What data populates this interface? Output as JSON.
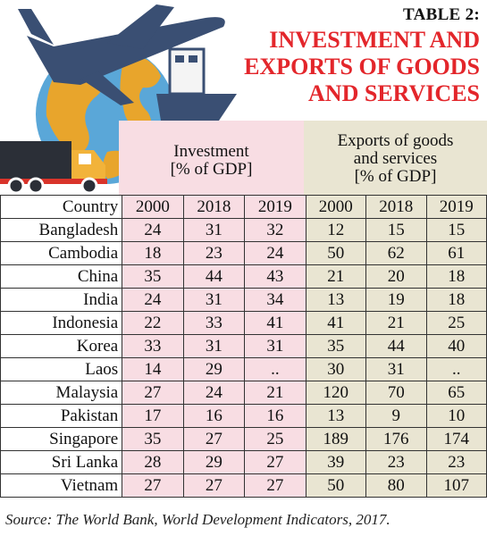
{
  "header": {
    "table_label": "TABLE 2:",
    "title_lines": [
      "INVESTMENT AND",
      "EXPORTS OF GOODS",
      "AND SERVICES"
    ]
  },
  "groups": {
    "investment": [
      "Investment",
      "[% of GDP]"
    ],
    "exports": [
      "Exports of goods",
      "and services",
      "[% of GDP]"
    ]
  },
  "columns": [
    "Country",
    "2000",
    "2018",
    "2019",
    "2000",
    "2018",
    "2019"
  ],
  "rows": [
    {
      "country": "Bangladesh",
      "investment": [
        "24",
        "31",
        "32"
      ],
      "exports": [
        "12",
        "15",
        "15"
      ]
    },
    {
      "country": "Cambodia",
      "investment": [
        "18",
        "23",
        "24"
      ],
      "exports": [
        "50",
        "62",
        "61"
      ]
    },
    {
      "country": "China",
      "investment": [
        "35",
        "44",
        "43"
      ],
      "exports": [
        "21",
        "20",
        "18"
      ]
    },
    {
      "country": "India",
      "investment": [
        "24",
        "31",
        "34"
      ],
      "exports": [
        "13",
        "19",
        "18"
      ]
    },
    {
      "country": "Indonesia",
      "investment": [
        "22",
        "33",
        "41"
      ],
      "exports": [
        "41",
        "21",
        "25"
      ]
    },
    {
      "country": "Korea",
      "investment": [
        "33",
        "31",
        "31"
      ],
      "exports": [
        "35",
        "44",
        "40"
      ]
    },
    {
      "country": "Laos",
      "investment": [
        "14",
        "29",
        ".."
      ],
      "exports": [
        "30",
        "31",
        ".."
      ]
    },
    {
      "country": "Malaysia",
      "investment": [
        "27",
        "24",
        "21"
      ],
      "exports": [
        "120",
        "70",
        "65"
      ]
    },
    {
      "country": "Pakistan",
      "investment": [
        "17",
        "16",
        "16"
      ],
      "exports": [
        "13",
        "9",
        "10"
      ]
    },
    {
      "country": "Singapore",
      "investment": [
        "35",
        "27",
        "25"
      ],
      "exports": [
        "189",
        "176",
        "174"
      ]
    },
    {
      "country": "Sri Lanka",
      "investment": [
        "28",
        "29",
        "27"
      ],
      "exports": [
        "39",
        "23",
        "23"
      ]
    },
    {
      "country": "Vietnam",
      "investment": [
        "27",
        "27",
        "27"
      ],
      "exports": [
        "50",
        "80",
        "107"
      ]
    }
  ],
  "source": "Source: The World Bank, World Development Indicators, 2017.",
  "colors": {
    "title": "#e3262b",
    "investment_bg": "#f8dde3",
    "exports_bg": "#e9e5d2",
    "plane": "#3a4f73",
    "globe_water": "#5aa7d8",
    "globe_land": "#e8a52c",
    "truck_cab": "#f2b33a",
    "truck_box": "#2b2f37",
    "ship": "#d9342b"
  },
  "illustration_icons": [
    "airplane-icon",
    "globe-icon",
    "cargo-ship-icon",
    "delivery-truck-icon"
  ]
}
